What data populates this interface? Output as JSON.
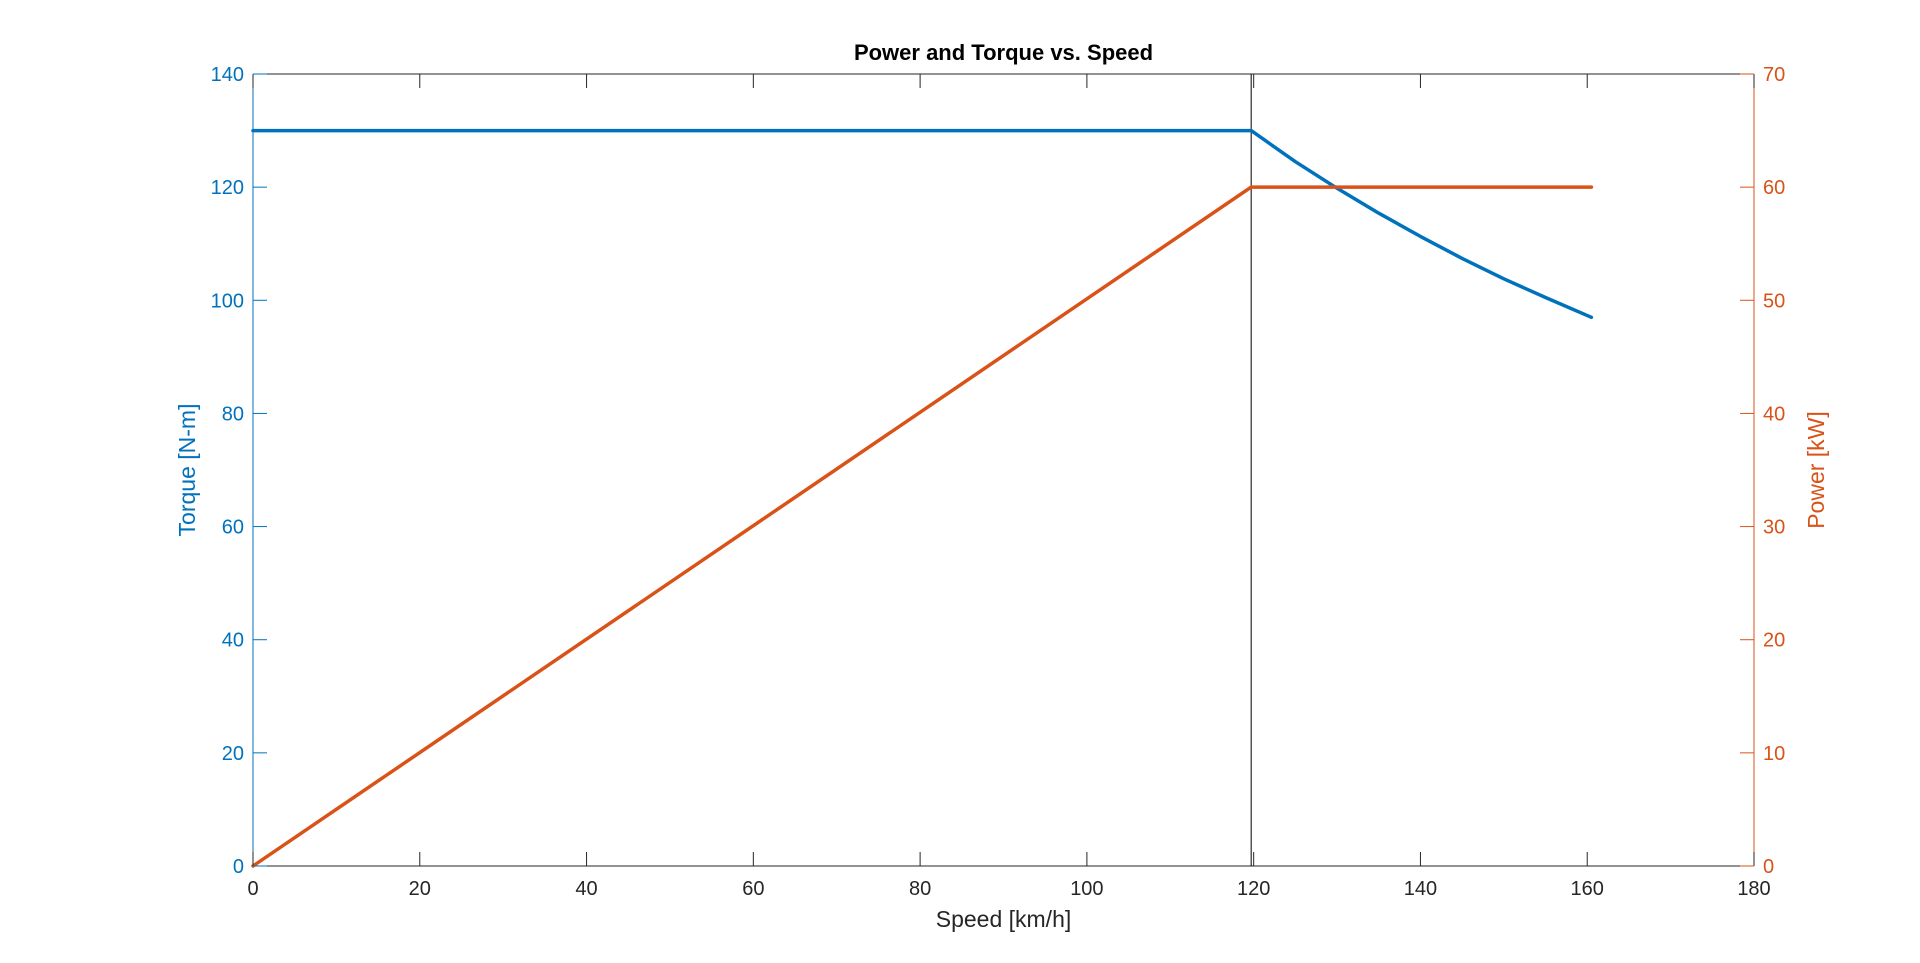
{
  "chart_data": {
    "type": "line",
    "title": "Power and Torque vs. Speed",
    "xlabel": "Speed [km/h]",
    "ylabel_left": "Torque [N-m]",
    "ylabel_right": "Power [kW]",
    "xlim": [
      0,
      180
    ],
    "ylim_left": [
      0,
      140
    ],
    "ylim_right": [
      0,
      70
    ],
    "x_ticks": [
      "0",
      "20",
      "40",
      "60",
      "80",
      "100",
      "120",
      "140",
      "160",
      "180"
    ],
    "y_left_ticks": [
      "0",
      "20",
      "40",
      "60",
      "80",
      "100",
      "120",
      "140"
    ],
    "y_right_ticks": [
      "0",
      "10",
      "20",
      "30",
      "40",
      "50",
      "60",
      "70"
    ],
    "grid": false,
    "vertical_marker_x": 119.7,
    "colors": {
      "left_axis": "#0072BD",
      "right_axis": "#D95319",
      "axes": "#262626"
    },
    "series": [
      {
        "axis": "left",
        "color": "#0072BD",
        "x": [
          0,
          119.7,
          125,
          130,
          135,
          140,
          145,
          150,
          155,
          160.5
        ],
        "y": [
          130,
          130,
          124.5,
          119.8,
          115.4,
          111.3,
          107.4,
          103.8,
          100.5,
          97
        ]
      },
      {
        "axis": "right",
        "color": "#D95319",
        "x": [
          0,
          119.7,
          160.5
        ],
        "y": [
          0,
          60,
          60
        ]
      }
    ]
  }
}
